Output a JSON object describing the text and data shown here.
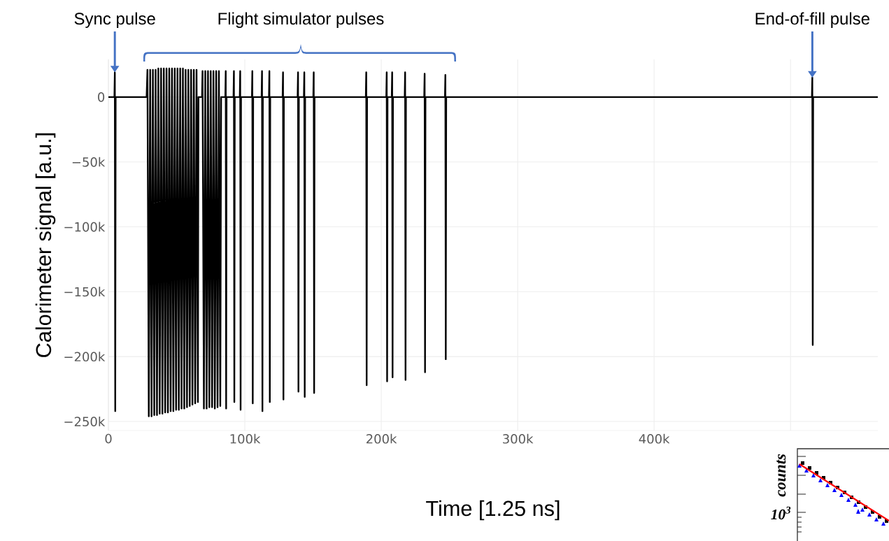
{
  "chart_data": [
    {
      "type": "line",
      "xlabel": "Time [1.25 ns]",
      "ylabel": "Calorimeter signal [a.u.]",
      "xlim": [
        0,
        564000
      ],
      "ylim": [
        -257000,
        29000
      ],
      "xticks": [
        0,
        {
          "value": 100000,
          "label": "100k"
        },
        {
          "value": 200000,
          "label": "200k"
        },
        {
          "value": 300000,
          "label": "300k"
        },
        {
          "value": 400000,
          "label": "400k"
        },
        {
          "value": 500000,
          "label": null
        }
      ],
      "yticks": [
        0,
        {
          "value": -50000,
          "label": "−50k"
        },
        {
          "value": -100000,
          "label": "−100k"
        },
        {
          "value": -150000,
          "label": "−150k"
        },
        {
          "value": -200000,
          "label": "−200k"
        },
        {
          "value": -250000,
          "label": "−250k"
        }
      ],
      "grid": true,
      "line_style": "solid",
      "marker": "none",
      "series": [
        {
          "color": "#000000",
          "x": [
            0,
            4400,
            4700,
            5000,
            5300,
            28000,
            28600,
            29600,
            30600,
            31600,
            32600,
            33600,
            34600,
            35600,
            36600,
            37600,
            38600,
            39600,
            40600,
            41600,
            42600,
            43600,
            44600,
            45600,
            46600,
            47600,
            48600,
            49600,
            50600,
            51600,
            52600,
            53600,
            54600,
            55600,
            56600,
            57600,
            58600,
            59600,
            60600,
            61600,
            62600,
            63600,
            64600,
            65600,
            66000,
            68600,
            69000,
            70000,
            71000,
            72000,
            73000,
            74000,
            75000,
            76000,
            77000,
            78000,
            79000,
            80000,
            81000,
            82000,
            82600,
            85700,
            86000,
            86300,
            86600,
            91700,
            92000,
            92300,
            92600,
            96300,
            96600,
            96900,
            97200,
            105200,
            105500,
            105800,
            106100,
            112300,
            112600,
            112900,
            113200,
            117700,
            118000,
            118300,
            118600,
            127700,
            128000,
            128300,
            128600,
            138700,
            139000,
            139300,
            139600,
            143300,
            143600,
            143900,
            144200,
            150200,
            150500,
            150800,
            151100,
            188700,
            189000,
            189300,
            189600,
            203700,
            204000,
            204300,
            204600,
            207700,
            208000,
            208300,
            208600,
            217200,
            217500,
            217800,
            218100,
            231500,
            231800,
            232100,
            232400,
            246700,
            247000,
            247300,
            247600,
            515700,
            516000,
            516300,
            516600,
            564000
          ],
          "values": [
            0,
            0,
            19000,
            -242000,
            0,
            0,
            21000,
            -246000,
            21000,
            -246000,
            21000,
            -245000,
            21000,
            -245000,
            22000,
            -244000,
            22000,
            -244000,
            22000,
            -243000,
            22000,
            -243000,
            22000,
            -242000,
            22000,
            -242000,
            22000,
            -241000,
            22000,
            -241000,
            22000,
            -240000,
            22000,
            -240000,
            21000,
            -239000,
            21000,
            -238000,
            21000,
            -237000,
            21000,
            -236000,
            21000,
            -235000,
            0,
            0,
            20000,
            -240000,
            20000,
            -240000,
            20000,
            -239000,
            20000,
            -239000,
            20000,
            -240000,
            20000,
            -239000,
            20000,
            -238000,
            0,
            0,
            20000,
            -240000,
            0,
            0,
            20000,
            -235000,
            0,
            0,
            20000,
            -241000,
            0,
            0,
            20000,
            -236000,
            0,
            0,
            20000,
            -242000,
            0,
            0,
            20000,
            -235000,
            0,
            0,
            19000,
            -233000,
            0,
            0,
            19000,
            -227000,
            0,
            0,
            19000,
            -231000,
            0,
            0,
            19000,
            -228000,
            0,
            0,
            19000,
            -222000,
            0,
            0,
            19000,
            -219000,
            0,
            0,
            19000,
            -216000,
            0,
            0,
            19000,
            -218000,
            0,
            0,
            18000,
            -212000,
            0,
            0,
            17000,
            -202000,
            0,
            0,
            15000,
            -191000,
            0,
            0
          ]
        }
      ],
      "annotations": [
        {
          "text": "Sync pulse",
          "x": 4700,
          "y": 19000
        },
        "Flight simulator pulses",
        {
          "text": "End-of-fill pulse",
          "x": 516000,
          "y": 15000
        }
      ]
    },
    {
      "type": "other",
      "ylabel": "counts",
      "annotations": [
        "10$^{3}$"
      ]
    }
  ]
}
